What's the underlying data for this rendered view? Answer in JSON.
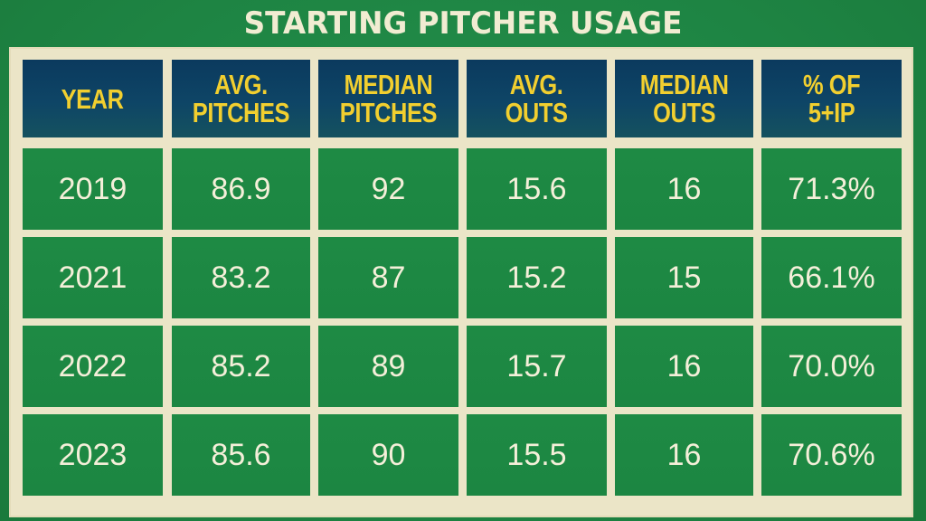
{
  "title": "STARTING PITCHER USAGE",
  "colors": {
    "background": "#1f8a45",
    "frame": "#ebe5c7",
    "header_bg": "#0e4566",
    "header_text": "#f2cf2f",
    "cell_text": "#f4efd9"
  },
  "chart_data": {
    "type": "table",
    "title": "STARTING PITCHER USAGE",
    "columns": [
      "YEAR",
      "AVG.\nPITCHES",
      "MEDIAN\nPITCHES",
      "AVG.\nOUTS",
      "MEDIAN\nOUTS",
      "% OF\n5+IP"
    ],
    "rows": [
      [
        "2019",
        "86.9",
        "92",
        "15.6",
        "16",
        "71.3%"
      ],
      [
        "2021",
        "83.2",
        "87",
        "15.2",
        "15",
        "66.1%"
      ],
      [
        "2022",
        "85.2",
        "89",
        "15.7",
        "16",
        "70.0%"
      ],
      [
        "2023",
        "85.6",
        "90",
        "15.5",
        "16",
        "70.6%"
      ]
    ]
  }
}
